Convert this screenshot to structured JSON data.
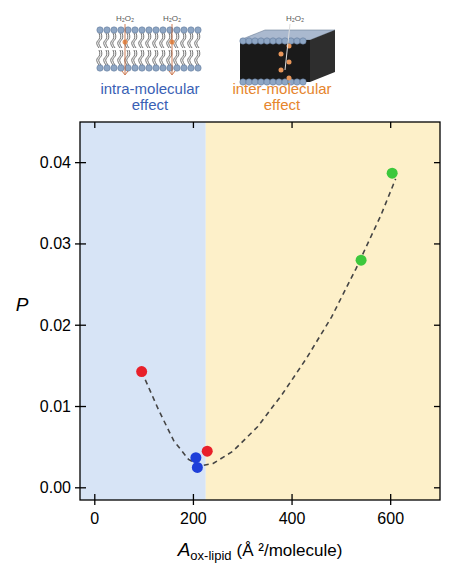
{
  "chart_data": {
    "type": "scatter",
    "ylabel": "P",
    "xlabel": "A",
    "xlabel_sub": "ox-lipid",
    "xlabel_unit": "(Å ²/molecule)",
    "molecule_label": "H₂O₂",
    "xlim": [
      -30,
      700
    ],
    "xticks": [
      0,
      200,
      400,
      600
    ],
    "ylim": [
      -0.0015,
      0.045
    ],
    "yticks": [
      {
        "value": 0,
        "label": "0.00"
      },
      {
        "value": 0.01,
        "label": "0.01"
      },
      {
        "value": 0.02,
        "label": "0.02"
      },
      {
        "value": 0.03,
        "label": "0.03"
      },
      {
        "value": 0.04,
        "label": "0.04"
      }
    ],
    "grid": false,
    "regions": [
      {
        "label": "intra-molecular effect",
        "from": -30,
        "to": 225,
        "color": "#d7e4f6"
      },
      {
        "label": "inter-molecular effect",
        "from": 225,
        "to": 700,
        "color": "#fdf0c9"
      }
    ],
    "series": [
      {
        "type": "scatter",
        "marker": "circle",
        "x": [
          95,
          205,
          208,
          228,
          540,
          603
        ],
        "values": [
          0.0143,
          0.0037,
          0.0025,
          0.0045,
          0.028,
          0.0387
        ],
        "colors": [
          "#e8202a",
          "#1f3fd9",
          "#1f3fd9",
          "#e8202a",
          "#3cc83c",
          "#3cc83c"
        ]
      },
      {
        "type": "line",
        "line_style": "dashed",
        "color": "#444444",
        "x": [
          95,
          130,
          160,
          190,
          215,
          240,
          280,
          330,
          380,
          430,
          480,
          530,
          580,
          610
        ],
        "values": [
          0.0143,
          0.0095,
          0.0058,
          0.0035,
          0.0027,
          0.003,
          0.0045,
          0.0075,
          0.0115,
          0.016,
          0.021,
          0.027,
          0.0335,
          0.038
        ]
      }
    ]
  }
}
